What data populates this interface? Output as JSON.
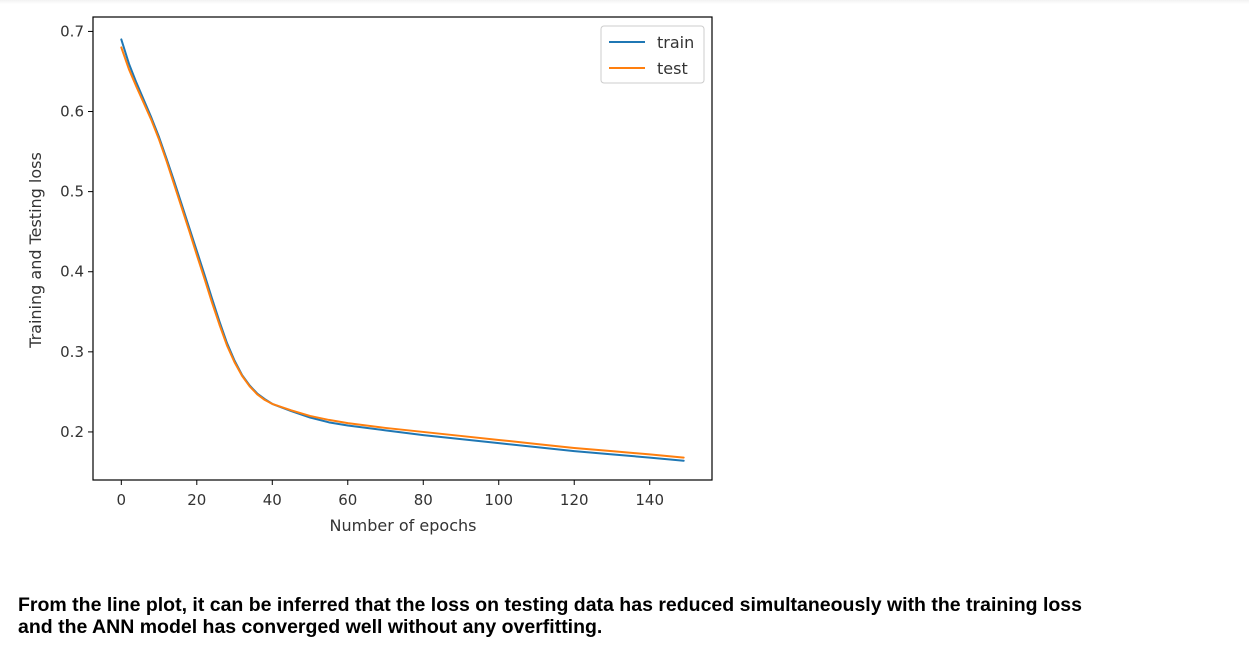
{
  "chart_data": {
    "type": "line",
    "title": "",
    "xlabel": "Number of epochs",
    "ylabel": "Training and Testing loss",
    "xlim": [
      -7.5,
      156.5
    ],
    "ylim": [
      0.14,
      0.718
    ],
    "xticks": [
      0,
      20,
      40,
      60,
      80,
      100,
      120,
      140
    ],
    "yticks": [
      0.2,
      0.3,
      0.4,
      0.5,
      0.6,
      0.7
    ],
    "xtick_labels": [
      "0",
      "20",
      "40",
      "60",
      "80",
      "100",
      "120",
      "140"
    ],
    "ytick_labels": [
      "0.2",
      "0.3",
      "0.4",
      "0.5",
      "0.6",
      "0.7"
    ],
    "grid": false,
    "legend_position": "upper right",
    "x": [
      0,
      2,
      4,
      6,
      8,
      10,
      12,
      14,
      16,
      18,
      20,
      22,
      24,
      26,
      28,
      30,
      32,
      34,
      36,
      38,
      40,
      45,
      50,
      55,
      60,
      70,
      80,
      90,
      100,
      110,
      120,
      130,
      140,
      149
    ],
    "series": [
      {
        "name": "train",
        "color": "#1f77b4",
        "values": [
          0.69,
          0.66,
          0.636,
          0.614,
          0.592,
          0.568,
          0.541,
          0.513,
          0.484,
          0.455,
          0.426,
          0.397,
          0.367,
          0.338,
          0.311,
          0.289,
          0.271,
          0.258,
          0.248,
          0.241,
          0.235,
          0.226,
          0.218,
          0.212,
          0.208,
          0.202,
          0.196,
          0.191,
          0.186,
          0.181,
          0.176,
          0.172,
          0.168,
          0.164
        ]
      },
      {
        "name": "test",
        "color": "#ff7f0e",
        "values": [
          0.68,
          0.653,
          0.631,
          0.61,
          0.589,
          0.565,
          0.538,
          0.509,
          0.48,
          0.451,
          0.421,
          0.392,
          0.362,
          0.334,
          0.308,
          0.287,
          0.27,
          0.257,
          0.247,
          0.24,
          0.235,
          0.227,
          0.22,
          0.215,
          0.211,
          0.205,
          0.2,
          0.195,
          0.19,
          0.185,
          0.18,
          0.176,
          0.172,
          0.168
        ]
      }
    ]
  },
  "caption": {
    "line1": "From the line plot, it can be inferred that the loss on testing data has reduced simultaneously with the training loss",
    "line2": "and the ANN model has converged well without any overfitting."
  }
}
